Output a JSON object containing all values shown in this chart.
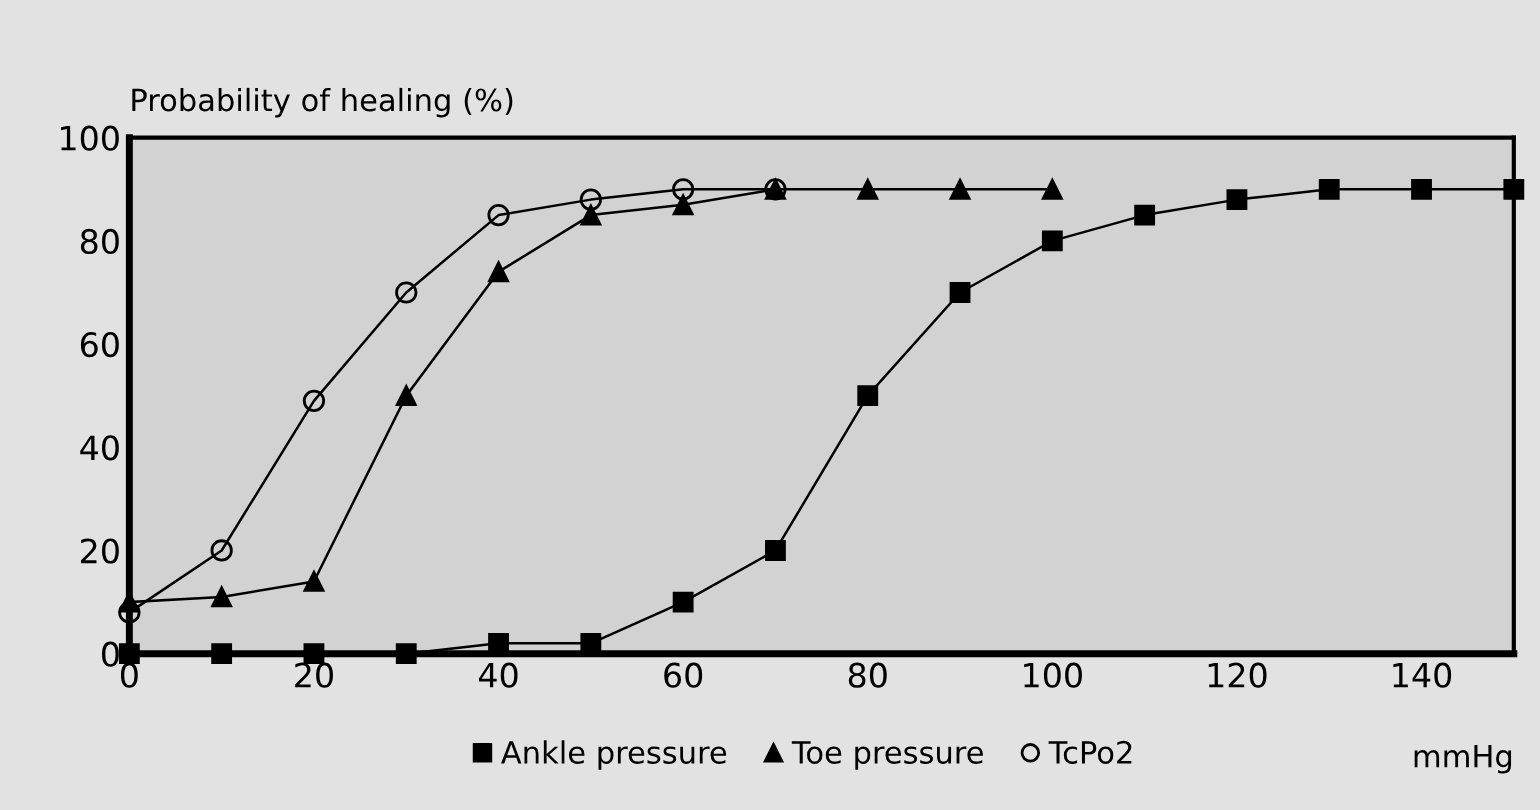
{
  "chart_data": {
    "type": "line",
    "ylabel": "Probability of healing (%)",
    "xlabel": "mmHg",
    "xlim": [
      0,
      150
    ],
    "xticks": [
      0,
      20,
      40,
      60,
      80,
      100,
      120,
      140
    ],
    "ylim": [
      0,
      100
    ],
    "yticks": [
      0,
      20,
      40,
      60,
      80,
      100
    ],
    "grid": false,
    "legend": "bottom",
    "line_style": "solid",
    "series": [
      {
        "name": "Ankle pressure",
        "color": "#000000",
        "marker": "square",
        "x": [
          0,
          10,
          20,
          30,
          40,
          50,
          60,
          70,
          80,
          90,
          100,
          110,
          120,
          130,
          140,
          150
        ],
        "values": [
          0,
          0,
          0,
          0,
          2,
          2,
          10,
          20,
          50,
          70,
          80,
          85,
          88,
          90,
          90,
          90
        ]
      },
      {
        "name": "Toe pressure",
        "color": "#000000",
        "marker": "triangle",
        "x": [
          0,
          10,
          20,
          30,
          40,
          50,
          60,
          70,
          80,
          90,
          100
        ],
        "values": [
          10,
          11,
          14,
          50,
          74,
          85,
          87,
          90,
          90,
          90,
          90
        ]
      },
      {
        "name": "TcPo2",
        "color": "#000000",
        "marker": "circle",
        "x": [
          0,
          10,
          20,
          30,
          40,
          50,
          60,
          70
        ],
        "values": [
          8,
          20,
          49,
          70,
          85,
          88,
          90,
          90
        ]
      }
    ]
  }
}
